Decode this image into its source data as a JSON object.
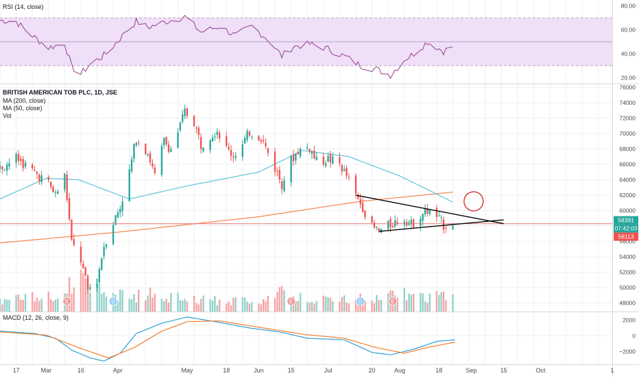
{
  "colors": {
    "up": "#26a69a",
    "down": "#ef5350",
    "vol_up": "#8fd1c9",
    "vol_down": "#f5a3a1",
    "ma200": "#f7824a",
    "ma50": "#5ec3d8",
    "rsi": "#9c4a9a",
    "rsi_band": "#efe0f7",
    "macd": "#2e9fd6",
    "signal": "#f57c2c",
    "hline": "#e57373",
    "grid": "#eef0f3",
    "axis_text": "#4a4a4a",
    "price_tag": "#26a69a",
    "timer_tag": "#26a69a",
    "low_tag": "#ef5350"
  },
  "rsi_pane": {
    "label": "RSI (14, close)",
    "ticks": [
      "80.00",
      "60.00",
      "40.00",
      "20.00"
    ],
    "tick_values": [
      80,
      60,
      40,
      20
    ],
    "band": [
      30,
      70
    ]
  },
  "price_pane": {
    "symbol_line": "BRITISH AMERICAN TOB PLC, 1D, JSE",
    "ma200_label": "MA (200, close)",
    "ma50_label": "MA (50, close)",
    "vol_label": "Vol",
    "ticks": [
      "76000",
      "74000",
      "72000",
      "70000",
      "68000",
      "66000",
      "64000",
      "62000",
      "60000",
      "58000",
      "56000",
      "54000",
      "52000",
      "50000",
      "48000"
    ],
    "tick_values": [
      76000,
      74000,
      72000,
      70000,
      68000,
      66000,
      64000,
      62000,
      60000,
      58000,
      56000,
      54000,
      52000,
      50000,
      48000
    ],
    "last_price": "58391",
    "countdown": "07:42:03",
    "low_price": "58113",
    "hline_value": 58300,
    "events": [
      "E",
      "D",
      "E",
      "D",
      "E"
    ]
  },
  "macd_pane": {
    "label": "MACD (12, 26, close, 9)",
    "ticks": [
      "2000",
      "0",
      "−2000"
    ],
    "tick_values": [
      2000,
      0,
      -2000
    ]
  },
  "time_axis": {
    "labels": [
      "17",
      "Mar",
      "16",
      "Apr",
      "May",
      "18",
      "Jun",
      "15",
      "Jul",
      "20",
      "Aug",
      "18",
      "Sep",
      "15",
      "Oct",
      "1"
    ]
  },
  "chart_data": {
    "type": "candlestick",
    "title": "BRITISH AMERICAN TOB PLC, 1D, JSE",
    "x_range": [
      "2020-02-10",
      "2020-11-01"
    ],
    "y_range_price": [
      47000,
      76000
    ],
    "price_anchors": [
      [
        "2020-02-10",
        65500
      ],
      [
        "2020-02-17",
        66800
      ],
      [
        "2020-02-24",
        65200
      ],
      [
        "2020-03-02",
        63500
      ],
      [
        "2020-03-05",
        62000
      ],
      [
        "2020-03-09",
        64500
      ],
      [
        "2020-03-12",
        55800
      ],
      [
        "2020-03-16",
        53500
      ],
      [
        "2020-03-19",
        49700
      ],
      [
        "2020-03-23",
        51000
      ],
      [
        "2020-03-26",
        55500
      ],
      [
        "2020-03-30",
        58500
      ],
      [
        "2020-04-02",
        60500
      ],
      [
        "2020-04-06",
        65000
      ],
      [
        "2020-04-09",
        69500
      ],
      [
        "2020-04-14",
        67500
      ],
      [
        "2020-04-17",
        64500
      ],
      [
        "2020-04-21",
        69000
      ],
      [
        "2020-04-24",
        68000
      ],
      [
        "2020-04-28",
        71000
      ],
      [
        "2020-04-30",
        72800
      ],
      [
        "2020-05-04",
        71500
      ],
      [
        "2020-05-07",
        68500
      ],
      [
        "2020-05-11",
        69800
      ],
      [
        "2020-05-14",
        70500
      ],
      [
        "2020-05-18",
        68000
      ],
      [
        "2020-05-21",
        67200
      ],
      [
        "2020-05-25",
        68500
      ],
      [
        "2020-05-28",
        70200
      ],
      [
        "2020-06-02",
        69500
      ],
      [
        "2020-06-05",
        67500
      ],
      [
        "2020-06-08",
        65500
      ],
      [
        "2020-06-11",
        63500
      ],
      [
        "2020-06-15",
        66500
      ],
      [
        "2020-06-18",
        67800
      ],
      [
        "2020-06-23",
        68200
      ],
      [
        "2020-06-26",
        66300
      ],
      [
        "2020-07-01",
        66700
      ],
      [
        "2020-07-06",
        66000
      ],
      [
        "2020-07-09",
        64500
      ],
      [
        "2020-07-13",
        61800
      ],
      [
        "2020-07-16",
        60500
      ],
      [
        "2020-07-20",
        57800
      ],
      [
        "2020-07-23",
        57300
      ],
      [
        "2020-07-27",
        58000
      ],
      [
        "2020-07-30",
        58500
      ],
      [
        "2020-08-03",
        59000
      ],
      [
        "2020-08-06",
        58200
      ],
      [
        "2020-08-10",
        59500
      ],
      [
        "2020-08-13",
        60000
      ],
      [
        "2020-08-17",
        59200
      ],
      [
        "2020-08-20",
        58100
      ],
      [
        "2020-08-24",
        58391
      ]
    ],
    "ma200_anchors": [
      [
        "2020-02-10",
        55800
      ],
      [
        "2020-04-01",
        57200
      ],
      [
        "2020-06-01",
        59200
      ],
      [
        "2020-07-15",
        61200
      ],
      [
        "2020-08-24",
        62400
      ]
    ],
    "ma50_anchors": [
      [
        "2020-02-10",
        61500
      ],
      [
        "2020-03-01",
        64200
      ],
      [
        "2020-03-15",
        64000
      ],
      [
        "2020-04-06",
        61500
      ],
      [
        "2020-05-01",
        63200
      ],
      [
        "2020-06-01",
        65000
      ],
      [
        "2020-06-20",
        67800
      ],
      [
        "2020-07-10",
        67000
      ],
      [
        "2020-08-01",
        64500
      ],
      [
        "2020-08-24",
        61100
      ]
    ],
    "volume_anchors": [
      [
        "2020-02-10",
        0.3
      ],
      [
        "2020-03-02",
        0.4
      ],
      [
        "2020-03-12",
        0.7
      ],
      [
        "2020-03-16",
        0.9
      ],
      [
        "2020-03-20",
        0.8
      ],
      [
        "2020-03-26",
        0.5
      ],
      [
        "2020-04-08",
        0.4
      ],
      [
        "2020-04-17",
        0.5
      ],
      [
        "2020-05-01",
        0.3
      ],
      [
        "2020-06-01",
        0.3
      ],
      [
        "2020-06-12",
        0.5
      ],
      [
        "2020-06-23",
        0.3
      ],
      [
        "2020-07-15",
        0.35
      ],
      [
        "2020-08-03",
        0.45
      ],
      [
        "2020-08-13",
        0.35
      ],
      [
        "2020-08-24",
        0.55
      ]
    ],
    "rsi_anchors": [
      [
        "2020-02-10",
        68
      ],
      [
        "2020-02-17",
        67
      ],
      [
        "2020-02-24",
        55
      ],
      [
        "2020-03-02",
        45
      ],
      [
        "2020-03-09",
        49
      ],
      [
        "2020-03-12",
        29
      ],
      [
        "2020-03-16",
        23
      ],
      [
        "2020-03-20",
        31
      ],
      [
        "2020-03-27",
        40
      ],
      [
        "2020-04-03",
        55
      ],
      [
        "2020-04-09",
        67
      ],
      [
        "2020-04-14",
        62
      ],
      [
        "2020-04-22",
        67
      ],
      [
        "2020-04-30",
        71
      ],
      [
        "2020-05-07",
        58
      ],
      [
        "2020-05-15",
        63
      ],
      [
        "2020-05-22",
        55
      ],
      [
        "2020-05-29",
        63
      ],
      [
        "2020-06-05",
        52
      ],
      [
        "2020-06-11",
        38
      ],
      [
        "2020-06-16",
        46
      ],
      [
        "2020-06-23",
        48
      ],
      [
        "2020-07-01",
        44
      ],
      [
        "2020-07-09",
        37
      ],
      [
        "2020-07-15",
        30
      ],
      [
        "2020-07-22",
        27
      ],
      [
        "2020-07-28",
        22
      ],
      [
        "2020-08-03",
        35
      ],
      [
        "2020-08-07",
        40
      ],
      [
        "2020-08-13",
        50
      ],
      [
        "2020-08-20",
        42
      ],
      [
        "2020-08-25",
        47
      ]
    ],
    "macd_anchors": [
      [
        "2020-02-10",
        600
      ],
      [
        "2020-02-25",
        300
      ],
      [
        "2020-03-05",
        -300
      ],
      [
        "2020-03-12",
        -1800
      ],
      [
        "2020-03-20",
        -2800
      ],
      [
        "2020-03-26",
        -3200
      ],
      [
        "2020-04-02",
        -2200
      ],
      [
        "2020-04-09",
        300
      ],
      [
        "2020-04-20",
        1600
      ],
      [
        "2020-05-01",
        2400
      ],
      [
        "2020-05-15",
        1700
      ],
      [
        "2020-05-28",
        1000
      ],
      [
        "2020-06-10",
        500
      ],
      [
        "2020-06-22",
        -300
      ],
      [
        "2020-07-08",
        -500
      ],
      [
        "2020-07-20",
        -2100
      ],
      [
        "2020-07-28",
        -2400
      ],
      [
        "2020-08-07",
        -1700
      ],
      [
        "2020-08-17",
        -700
      ],
      [
        "2020-08-25",
        -500
      ]
    ],
    "signal_anchors": [
      [
        "2020-02-10",
        500
      ],
      [
        "2020-03-01",
        100
      ],
      [
        "2020-03-15",
        -1500
      ],
      [
        "2020-03-28",
        -2800
      ],
      [
        "2020-04-08",
        -1500
      ],
      [
        "2020-04-20",
        600
      ],
      [
        "2020-05-01",
        1800
      ],
      [
        "2020-05-15",
        1900
      ],
      [
        "2020-06-01",
        1100
      ],
      [
        "2020-06-20",
        200
      ],
      [
        "2020-07-08",
        -300
      ],
      [
        "2020-07-22",
        -1500
      ],
      [
        "2020-08-03",
        -2200
      ],
      [
        "2020-08-14",
        -1400
      ],
      [
        "2020-08-25",
        -800
      ]
    ],
    "event_dates": [
      [
        "E",
        "2020-03-10"
      ],
      [
        "D",
        "2020-03-30"
      ],
      [
        "E",
        "2020-06-15"
      ],
      [
        "D",
        "2020-07-15"
      ],
      [
        "E",
        "2020-07-29"
      ]
    ],
    "triangle_upper": [
      [
        "2020-07-13",
        62000
      ],
      [
        "2020-09-15",
        58300
      ]
    ],
    "triangle_lower": [
      [
        "2020-07-23",
        57300
      ],
      [
        "2020-09-15",
        58800
      ]
    ]
  }
}
